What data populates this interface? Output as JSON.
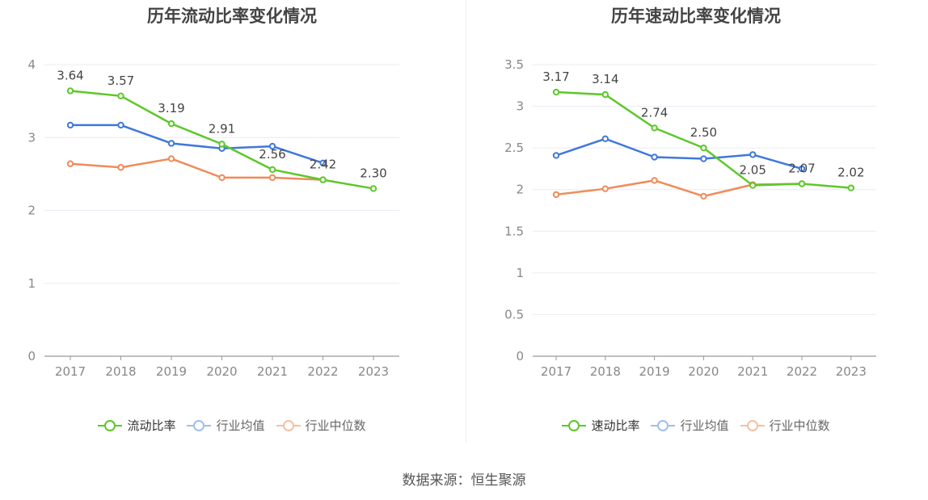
{
  "source_text": "数据来源：恒生聚源",
  "colors": {
    "main": "#5cc82a",
    "avg": "#3f78db",
    "median": "#f08b5a"
  },
  "chart_data": [
    {
      "type": "line",
      "title": "历年流动比率变化情况",
      "categories": [
        "2017",
        "2018",
        "2019",
        "2020",
        "2021",
        "2022",
        "2023"
      ],
      "ylim": [
        0,
        4
      ],
      "yticks": [
        "0",
        "1",
        "2",
        "3",
        "4"
      ],
      "series": [
        {
          "name": "流动比率",
          "values": [
            3.64,
            3.57,
            3.19,
            2.91,
            2.56,
            2.42,
            2.3
          ],
          "labels": [
            "3.64",
            "3.57",
            "3.19",
            "2.91",
            "2.56",
            "2.42",
            "2.30"
          ]
        },
        {
          "name": "行业均值",
          "values": [
            3.17,
            3.17,
            2.92,
            2.85,
            2.88,
            2.65,
            null
          ]
        },
        {
          "name": "行业中位数",
          "values": [
            2.64,
            2.59,
            2.71,
            2.45,
            2.45,
            2.42,
            null
          ]
        }
      ],
      "grid": true,
      "legend": "bottom"
    },
    {
      "type": "line",
      "title": "历年速动比率变化情况",
      "categories": [
        "2017",
        "2018",
        "2019",
        "2020",
        "2021",
        "2022",
        "2023"
      ],
      "ylim": [
        0,
        3.5
      ],
      "yticks": [
        "0",
        "0.5",
        "1",
        "1.5",
        "2",
        "2.5",
        "3",
        "3.5"
      ],
      "series": [
        {
          "name": "速动比率",
          "values": [
            3.17,
            3.14,
            2.74,
            2.5,
            2.05,
            2.07,
            2.02
          ],
          "labels": [
            "3.17",
            "3.14",
            "2.74",
            "2.50",
            "2.05",
            "2.07",
            "2.02"
          ]
        },
        {
          "name": "行业均值",
          "values": [
            2.41,
            2.61,
            2.39,
            2.37,
            2.42,
            2.25,
            null
          ]
        },
        {
          "name": "行业中位数",
          "values": [
            1.94,
            2.01,
            2.11,
            1.92,
            2.06,
            2.07,
            null
          ]
        }
      ],
      "grid": true,
      "legend": "bottom"
    }
  ]
}
